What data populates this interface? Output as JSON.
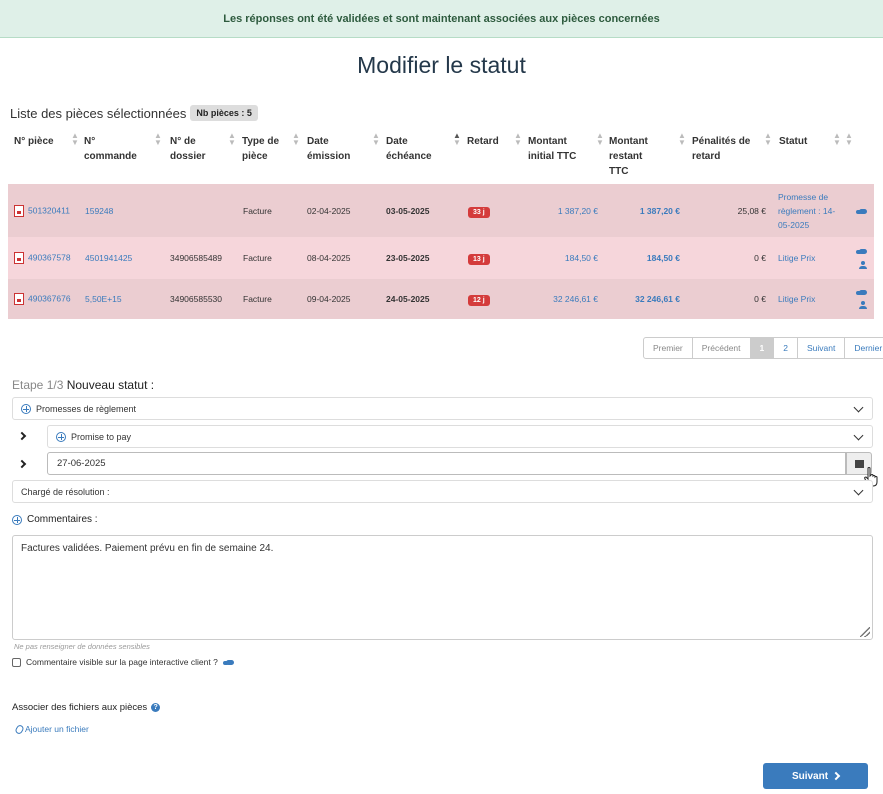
{
  "banner": "Les réponses ont été validées et sont maintenant associées aux pièces concernées",
  "page_title": "Modifier le statut",
  "list": {
    "title": "Liste des pièces sélectionnées",
    "count_badge": "Nb pièces : 5"
  },
  "table": {
    "headers": {
      "piece": "N° pièce",
      "commande": "N° commande",
      "dossier": "N° de dossier",
      "type": "Type de pièce",
      "emission": "Date émission",
      "echeance": "Date échéance",
      "retard": "Retard",
      "initial": "Montant initial TTC",
      "restant": "Montant restant TTC",
      "penalites": "Pénalités de retard",
      "statut": "Statut"
    },
    "rows": [
      {
        "piece": "501320411",
        "commande": "159248",
        "dossier": "",
        "type": "Facture",
        "emission": "02-04-2025",
        "echeance": "03-05-2025",
        "retard": "33 j",
        "initial": "1 387,20 €",
        "restant": "1 387,20 €",
        "penalites": "25,08 €",
        "statut": "Promesse de règlement : 14-05-2025"
      },
      {
        "piece": "490367578",
        "commande": "4501941425",
        "dossier": "34906585489",
        "type": "Facture",
        "emission": "08-04-2025",
        "echeance": "23-05-2025",
        "retard": "13 j",
        "initial": "184,50 €",
        "restant": "184,50 €",
        "penalites": "0 €",
        "statut": "Litige Prix"
      },
      {
        "piece": "490367676",
        "commande": "5,50E+15",
        "dossier": "34906585530",
        "type": "Facture",
        "emission": "09-04-2025",
        "echeance": "24-05-2025",
        "retard": "12 j",
        "initial": "32 246,61 €",
        "restant": "32 246,61 €",
        "penalites": "0 €",
        "statut": "Litige Prix"
      }
    ]
  },
  "pagination": {
    "first": "Premier",
    "prev": "Précédent",
    "page1": "1",
    "page2": "2",
    "next": "Suivant",
    "last": "Dernier"
  },
  "step": {
    "label": "Etape 1/3",
    "title": "Nouveau statut :"
  },
  "form": {
    "status_select": "Promesses de règlement",
    "substatus_select": "Promise to pay",
    "date_value": "27-06-2025",
    "resolution_select": "Chargé de résolution :",
    "comments_label": "Commentaires :",
    "comment_text": "Factures validées. Paiement prévu en fin de semaine 24.",
    "hint": "Ne pas renseigner de données sensibles",
    "visible_checkbox": "Commentaire visible sur la page interactive client ?"
  },
  "files": {
    "label": "Associer des fichiers aux pièces",
    "add": "Ajouter un fichier"
  },
  "next_button": "Suivant",
  "colors": {
    "accent": "#3a7bbd",
    "late_badge": "#d43b3b",
    "row_bg_1": "#ebcdd1",
    "row_bg_2": "#f6d6db",
    "banner_bg": "#dff0e8"
  }
}
